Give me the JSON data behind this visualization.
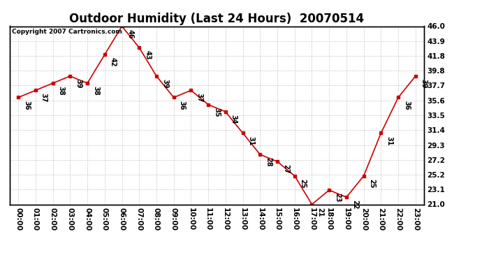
{
  "title": "Outdoor Humidity (Last 24 Hours)  20070514",
  "copyright": "Copyright 2007 Cartronics.com",
  "x_labels": [
    "00:00",
    "01:00",
    "02:00",
    "03:00",
    "04:00",
    "05:00",
    "06:00",
    "07:00",
    "08:00",
    "09:00",
    "10:00",
    "11:00",
    "12:00",
    "13:00",
    "14:00",
    "15:00",
    "16:00",
    "17:00",
    "18:00",
    "19:00",
    "20:00",
    "21:00",
    "22:00",
    "23:00"
  ],
  "y_values": [
    36,
    37,
    38,
    39,
    38,
    42,
    46,
    43,
    39,
    36,
    37,
    35,
    34,
    31,
    28,
    27,
    25,
    21,
    23,
    22,
    25,
    31,
    36,
    39
  ],
  "ylim": [
    21.0,
    46.0
  ],
  "y_right_ticks": [
    21.0,
    23.1,
    25.2,
    27.2,
    29.3,
    31.4,
    33.5,
    35.6,
    37.7,
    39.8,
    41.8,
    43.9,
    46.0
  ],
  "y_right_labels": [
    "21.0",
    "23.1",
    "25.2",
    "27.2",
    "29.3",
    "31.4",
    "33.5",
    "35.6",
    "37.7",
    "39.8",
    "41.8",
    "43.9",
    "46.0"
  ],
  "line_color": "#cc0000",
  "marker_color": "#cc0000",
  "bg_color": "#ffffff",
  "grid_color": "#bbbbbb",
  "annotation_color": "#000000",
  "title_fontsize": 12,
  "tick_fontsize": 7.5,
  "annotation_fontsize": 7,
  "copyright_fontsize": 6.5
}
